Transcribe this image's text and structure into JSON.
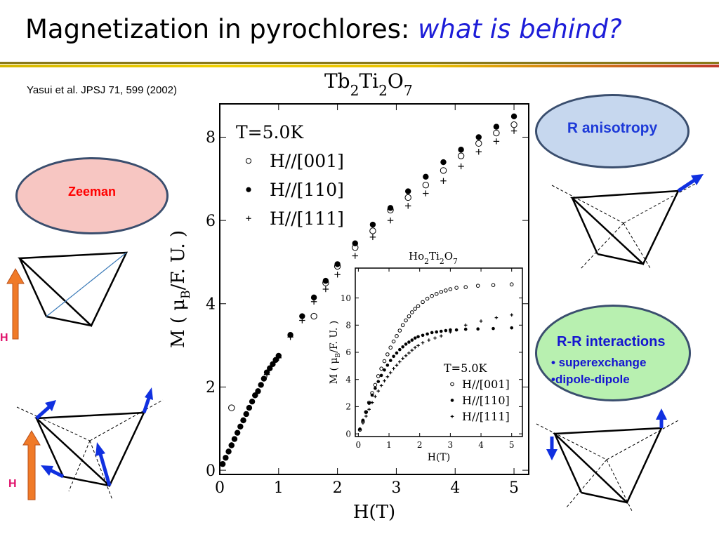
{
  "slide": {
    "title_main": "Magnetization in pyrochlores: ",
    "title_highlight": "what is behind?",
    "reference": "Yasui et al. JPSJ 71, 599 (2002)"
  },
  "bubbles": {
    "zeeman": "Zeeman",
    "r_anisotropy": "R anisotropy",
    "rr_interactions": {
      "title": "R-R interactions",
      "items": [
        "• superexchange",
        "•dipole-dipole"
      ]
    }
  },
  "diagram_labels": {
    "h_upper": "H",
    "h_lower": "H"
  },
  "colors": {
    "title_highlight": "#1d1dd8",
    "zeeman_fill": "#f7c6c2",
    "zeeman_text": "#ff0000",
    "anisotropy_fill": "#c6d7ee",
    "interactions_fill": "#b8f0b0",
    "bubble_text_blue": "#1d3ad8",
    "arrow_blue": "#1030e0",
    "field_arrow": "#f07a28",
    "h_label": "#e0106a"
  },
  "chart_data": [
    {
      "type": "scatter",
      "title_chem": {
        "parts": [
          "Tb",
          "2",
          "Ti",
          "2",
          "O",
          "7"
        ]
      },
      "xlabel": "H(T)",
      "ylabel_parts": [
        "M ( μ",
        "B",
        "/F. U. )"
      ],
      "xlim": [
        0,
        5.25
      ],
      "ylim": [
        -0.1,
        8.8
      ],
      "xticks": [
        0,
        1,
        2,
        3,
        4,
        5
      ],
      "yticks": [
        0,
        2,
        4,
        6,
        8
      ],
      "legend": {
        "placement": "top-left",
        "header": "T=5.0K"
      },
      "series": [
        {
          "name": "H//[001]",
          "marker": "open-circle",
          "points": [
            [
              0.2,
              1.5
            ],
            [
              1.6,
              3.7
            ],
            [
              1.8,
              4.5
            ],
            [
              2.0,
              4.9
            ],
            [
              2.3,
              5.35
            ],
            [
              2.6,
              5.75
            ],
            [
              2.9,
              6.25
            ],
            [
              3.2,
              6.55
            ],
            [
              3.5,
              6.85
            ],
            [
              3.8,
              7.2
            ],
            [
              4.1,
              7.55
            ],
            [
              4.4,
              7.85
            ],
            [
              4.7,
              8.1
            ],
            [
              5.0,
              8.3
            ]
          ]
        },
        {
          "name": "H//[110]",
          "marker": "filled-circle",
          "points": [
            [
              0.05,
              0.15
            ],
            [
              0.1,
              0.3
            ],
            [
              0.15,
              0.45
            ],
            [
              0.2,
              0.6
            ],
            [
              0.25,
              0.75
            ],
            [
              0.3,
              0.9
            ],
            [
              0.35,
              1.05
            ],
            [
              0.4,
              1.2
            ],
            [
              0.45,
              1.35
            ],
            [
              0.5,
              1.5
            ],
            [
              0.55,
              1.65
            ],
            [
              0.6,
              1.8
            ],
            [
              0.65,
              1.9
            ],
            [
              0.7,
              2.05
            ],
            [
              0.75,
              2.2
            ],
            [
              0.8,
              2.35
            ],
            [
              0.85,
              2.45
            ],
            [
              0.9,
              2.55
            ],
            [
              0.95,
              2.65
            ],
            [
              1.0,
              2.75
            ],
            [
              1.2,
              3.25
            ],
            [
              1.4,
              3.7
            ],
            [
              1.6,
              4.15
            ],
            [
              1.8,
              4.55
            ],
            [
              2.0,
              4.95
            ],
            [
              2.3,
              5.45
            ],
            [
              2.6,
              5.9
            ],
            [
              2.9,
              6.3
            ],
            [
              3.2,
              6.7
            ],
            [
              3.5,
              7.05
            ],
            [
              3.8,
              7.4
            ],
            [
              4.1,
              7.7
            ],
            [
              4.4,
              8.0
            ],
            [
              4.7,
              8.25
            ],
            [
              5.0,
              8.5
            ]
          ]
        },
        {
          "name": "H//[111]",
          "marker": "plus",
          "points": [
            [
              0.2,
              0.6
            ],
            [
              0.4,
              1.2
            ],
            [
              0.6,
              1.8
            ],
            [
              0.8,
              2.3
            ],
            [
              1.0,
              2.7
            ],
            [
              1.2,
              3.2
            ],
            [
              1.4,
              3.6
            ],
            [
              1.6,
              4.05
            ],
            [
              1.8,
              4.35
            ],
            [
              2.0,
              4.7
            ],
            [
              2.3,
              5.15
            ],
            [
              2.6,
              5.6
            ],
            [
              2.9,
              6.0
            ],
            [
              3.2,
              6.35
            ],
            [
              3.5,
              6.65
            ],
            [
              3.8,
              6.95
            ],
            [
              4.1,
              7.3
            ],
            [
              4.4,
              7.65
            ],
            [
              4.7,
              7.9
            ],
            [
              5.0,
              8.15
            ]
          ]
        }
      ]
    },
    {
      "type": "scatter",
      "title_chem": {
        "parts": [
          "Ho",
          "2",
          "Ti",
          "2",
          "O",
          "7"
        ]
      },
      "xlabel": "H(T)",
      "ylabel_parts": [
        "M ( μ",
        "B",
        "/F. U. )"
      ],
      "xlim": [
        -0.1,
        5.35
      ],
      "ylim": [
        -0.2,
        12.2
      ],
      "xticks": [
        0,
        1,
        2,
        3,
        4,
        5
      ],
      "yticks": [
        0,
        2,
        4,
        6,
        8,
        10
      ],
      "legend": {
        "placement": "bottom-right",
        "header": "T=5.0K"
      },
      "series": [
        {
          "name": "H//[001]",
          "marker": "open-circle",
          "points": [
            [
              0.05,
              0.3
            ],
            [
              0.15,
              0.9
            ],
            [
              0.25,
              1.6
            ],
            [
              0.35,
              2.3
            ],
            [
              0.45,
              3.0
            ],
            [
              0.55,
              3.6
            ],
            [
              0.65,
              4.25
            ],
            [
              0.75,
              4.8
            ],
            [
              0.85,
              5.35
            ],
            [
              0.95,
              5.85
            ],
            [
              1.05,
              6.35
            ],
            [
              1.15,
              6.8
            ],
            [
              1.25,
              7.2
            ],
            [
              1.35,
              7.6
            ],
            [
              1.45,
              8.0
            ],
            [
              1.55,
              8.35
            ],
            [
              1.65,
              8.65
            ],
            [
              1.75,
              8.95
            ],
            [
              1.85,
              9.2
            ],
            [
              1.95,
              9.4
            ],
            [
              2.1,
              9.7
            ],
            [
              2.25,
              9.95
            ],
            [
              2.4,
              10.15
            ],
            [
              2.55,
              10.3
            ],
            [
              2.7,
              10.45
            ],
            [
              2.85,
              10.55
            ],
            [
              3.0,
              10.65
            ],
            [
              3.2,
              10.75
            ],
            [
              3.5,
              10.8
            ],
            [
              3.9,
              10.9
            ],
            [
              4.4,
              10.95
            ],
            [
              5.0,
              11.0
            ]
          ]
        },
        {
          "name": "H//[110]",
          "marker": "filled-circle",
          "points": [
            [
              0.05,
              0.35
            ],
            [
              0.15,
              1.0
            ],
            [
              0.25,
              1.6
            ],
            [
              0.35,
              2.25
            ],
            [
              0.45,
              2.85
            ],
            [
              0.55,
              3.35
            ],
            [
              0.65,
              3.85
            ],
            [
              0.75,
              4.3
            ],
            [
              0.85,
              4.7
            ],
            [
              0.95,
              5.05
            ],
            [
              1.05,
              5.4
            ],
            [
              1.15,
              5.7
            ],
            [
              1.25,
              5.95
            ],
            [
              1.35,
              6.2
            ],
            [
              1.45,
              6.4
            ],
            [
              1.55,
              6.6
            ],
            [
              1.65,
              6.75
            ],
            [
              1.75,
              6.9
            ],
            [
              1.85,
              7.05
            ],
            [
              1.95,
              7.15
            ],
            [
              2.1,
              7.25
            ],
            [
              2.25,
              7.35
            ],
            [
              2.4,
              7.45
            ],
            [
              2.55,
              7.5
            ],
            [
              2.7,
              7.55
            ],
            [
              2.85,
              7.6
            ],
            [
              3.0,
              7.65
            ],
            [
              3.2,
              7.65
            ],
            [
              3.5,
              7.7
            ],
            [
              3.9,
              7.72
            ],
            [
              4.4,
              7.75
            ],
            [
              5.0,
              7.8
            ]
          ]
        },
        {
          "name": "H//[111]",
          "marker": "plus",
          "points": [
            [
              0.05,
              0.3
            ],
            [
              0.15,
              0.8
            ],
            [
              0.25,
              1.3
            ],
            [
              0.35,
              1.8
            ],
            [
              0.45,
              2.3
            ],
            [
              0.55,
              2.75
            ],
            [
              0.65,
              3.15
            ],
            [
              0.75,
              3.55
            ],
            [
              0.85,
              3.9
            ],
            [
              0.95,
              4.2
            ],
            [
              1.05,
              4.5
            ],
            [
              1.15,
              4.8
            ],
            [
              1.25,
              5.05
            ],
            [
              1.35,
              5.3
            ],
            [
              1.45,
              5.55
            ],
            [
              1.55,
              5.75
            ],
            [
              1.65,
              5.95
            ],
            [
              1.75,
              6.15
            ],
            [
              1.85,
              6.35
            ],
            [
              1.95,
              6.5
            ],
            [
              2.1,
              6.7
            ],
            [
              2.3,
              6.9
            ],
            [
              2.5,
              7.05
            ],
            [
              2.7,
              7.2
            ],
            [
              3.0,
              7.5
            ],
            [
              3.5,
              8.0
            ],
            [
              4.0,
              8.3
            ],
            [
              4.5,
              8.55
            ],
            [
              5.0,
              8.75
            ]
          ]
        }
      ]
    }
  ]
}
